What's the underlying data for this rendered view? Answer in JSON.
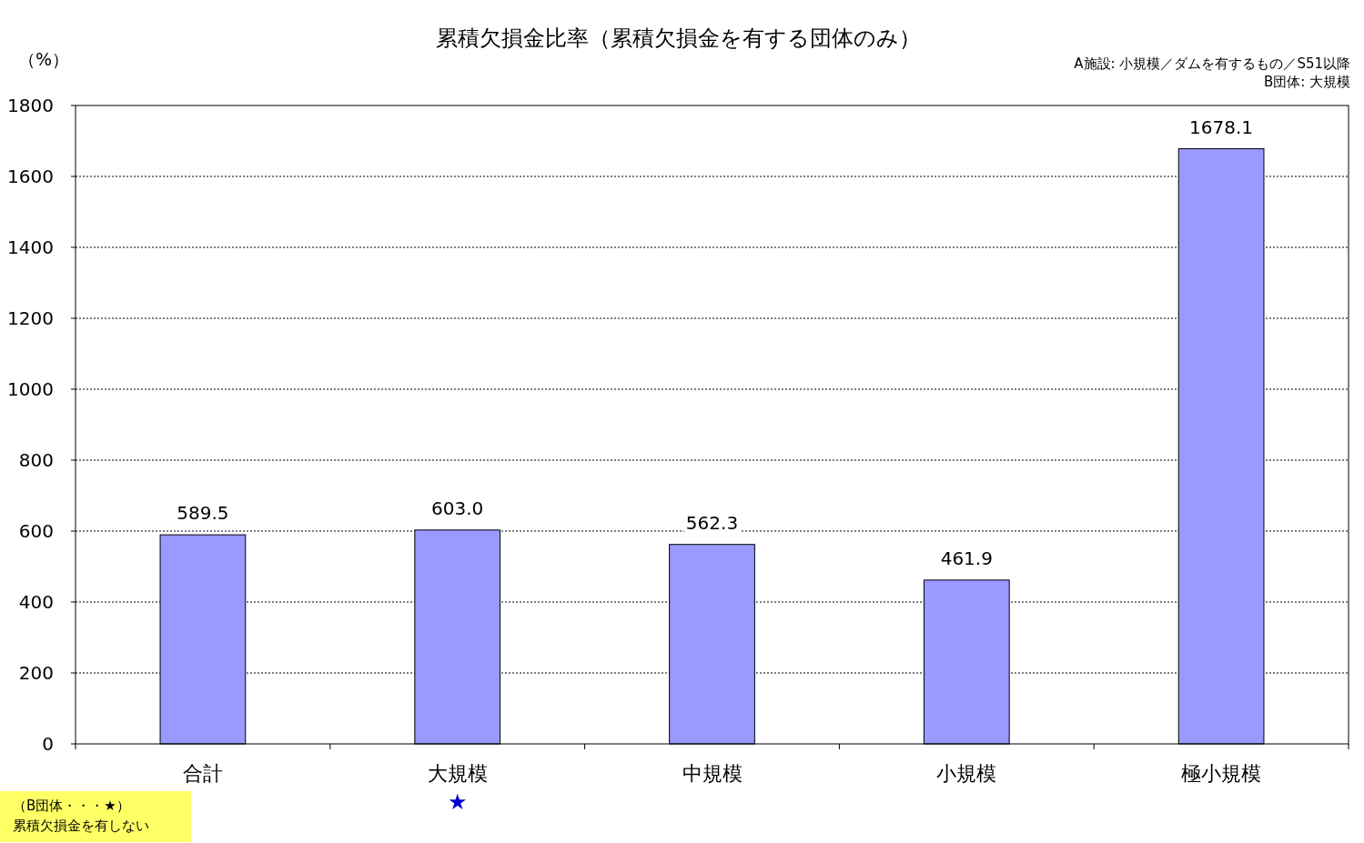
{
  "chart_data": {
    "type": "bar",
    "title": "累積欠損金比率（累積欠損金を有する団体のみ）",
    "ylabel": "（%）",
    "categories": [
      "合計",
      "大規模",
      "中規模",
      "小規模",
      "極小規模"
    ],
    "values": [
      589.5,
      603.0,
      562.3,
      461.9,
      1678.1
    ],
    "value_labels": [
      "589.5",
      "603.0",
      "562.3",
      "461.9",
      "1678.1"
    ],
    "color": "#9999ff",
    "ylim": [
      0,
      1800
    ],
    "yticks": [
      0,
      200,
      400,
      600,
      800,
      1000,
      1200,
      1400,
      1600,
      1800
    ],
    "grid": "y",
    "annotations": [
      "A施設: 小規模／ダムを有するもの／S51以降",
      "B団体: 大規模",
      "（B団体・・・★）",
      "累積欠損金を有しない",
      "★"
    ]
  }
}
